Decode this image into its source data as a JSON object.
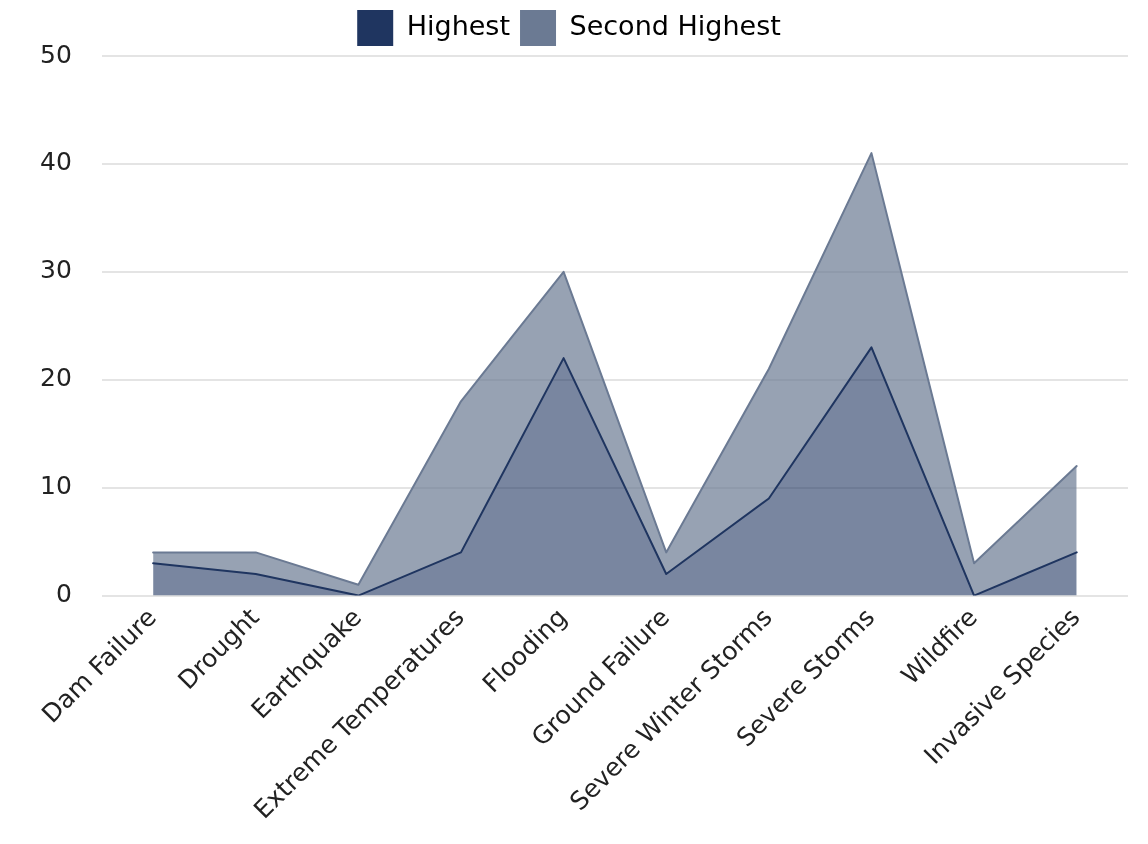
{
  "chart_data": {
    "type": "area",
    "stacked": true,
    "categories": [
      "Dam Failure",
      "Drought",
      "Earthquake",
      "Extreme Temperatures",
      "Flooding",
      "Ground Failure",
      "Severe Winter Storms",
      "Severe Storms",
      "Wildfire",
      "Invasive Species"
    ],
    "series": [
      {
        "name": "Highest",
        "color": "#1f3560",
        "values": [
          3,
          2,
          0,
          4,
          22,
          2,
          9,
          23,
          0,
          4
        ]
      },
      {
        "name": "Second Highest",
        "color": "#6b7a93",
        "values": [
          1,
          2,
          1,
          14,
          8,
          2,
          12,
          18,
          3,
          8
        ]
      }
    ],
    "ylim": [
      0,
      50
    ],
    "yticks": [
      0,
      10,
      20,
      30,
      40,
      50
    ],
    "grid": "y",
    "legend": "top"
  }
}
